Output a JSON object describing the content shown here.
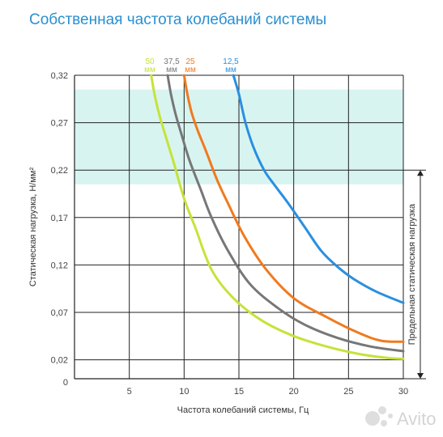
{
  "page_title": "Собственная частота колебаний системы",
  "chart_data": {
    "type": "line",
    "xlabel": "Частота колебаний системы, Гц",
    "ylabel": "Статическая нагрузка, Н/мм²",
    "xlim": [
      0,
      30
    ],
    "ylim": [
      0,
      0.32
    ],
    "x_ticks": [
      "5",
      "10",
      "15",
      "20",
      "25",
      "30"
    ],
    "y_ticks": [
      "0",
      "0,02",
      "0,07",
      "0,12",
      "0,17",
      "0,22",
      "0,27",
      "0,32"
    ],
    "y_tick_values": [
      0,
      0.02,
      0.07,
      0.12,
      0.17,
      0.22,
      0.27,
      0.32
    ],
    "grid": true,
    "highlight_band": {
      "y_from": 0.205,
      "y_to": 0.305,
      "color": "#d8f4f1"
    },
    "range_annotation": {
      "label": "Предельная статическая нагрузка",
      "y_from": 0,
      "y_to": 0.22
    },
    "series": [
      {
        "name": "50 мм",
        "label_top": "50",
        "label_bottom": "мм",
        "color": "#c5e33a",
        "x": [
          7.0,
          7.3,
          7.7,
          8.2,
          9.0,
          10.0,
          11.0,
          12.5,
          14.5,
          17.0,
          20.0,
          23.0,
          26.0,
          28.5,
          30.0
        ],
        "y": [
          0.32,
          0.3,
          0.28,
          0.26,
          0.23,
          0.19,
          0.16,
          0.115,
          0.085,
          0.062,
          0.045,
          0.034,
          0.026,
          0.022,
          0.021
        ]
      },
      {
        "name": "37,5 мм",
        "label_top": "37,5",
        "label_bottom": "мм",
        "color": "#777777",
        "x": [
          8.5,
          8.8,
          9.2,
          9.7,
          10.5,
          11.5,
          12.5,
          14.0,
          16.0,
          18.5,
          21.0,
          24.0,
          27.0,
          30.0
        ],
        "y": [
          0.32,
          0.3,
          0.28,
          0.26,
          0.23,
          0.2,
          0.17,
          0.135,
          0.1,
          0.075,
          0.057,
          0.043,
          0.034,
          0.029
        ]
      },
      {
        "name": "25 мм",
        "label_top": "25",
        "label_bottom": "мм",
        "color": "#f07a1e",
        "x": [
          10.0,
          10.3,
          10.7,
          11.3,
          12.0,
          13.0,
          14.0,
          15.5,
          17.5,
          20.0,
          23.0,
          26.0,
          28.0,
          30.0
        ],
        "y": [
          0.32,
          0.3,
          0.28,
          0.26,
          0.24,
          0.21,
          0.185,
          0.15,
          0.115,
          0.085,
          0.065,
          0.048,
          0.04,
          0.039
        ]
      },
      {
        "name": "12,5 мм",
        "label_top": "12,5",
        "label_bottom": "мм",
        "color": "#2a8fe0",
        "x": [
          14.5,
          15.0,
          15.6,
          16.3,
          17.3,
          18.2,
          19.5,
          21.0,
          22.5,
          24.0,
          25.5,
          27.5,
          30.0
        ],
        "y": [
          0.32,
          0.3,
          0.27,
          0.245,
          0.22,
          0.205,
          0.185,
          0.16,
          0.135,
          0.118,
          0.105,
          0.092,
          0.08
        ]
      }
    ]
  },
  "watermark": "Avito"
}
